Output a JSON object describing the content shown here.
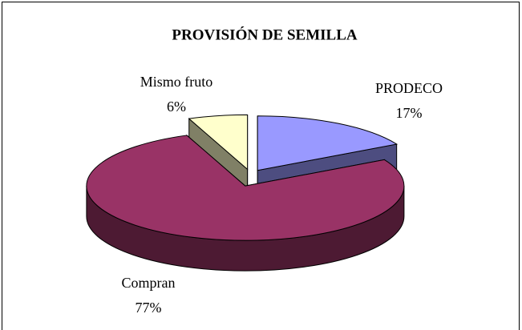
{
  "chart_data": {
    "type": "pie3d",
    "title": "PROVISIÓN DE SEMILLA",
    "categories": [
      "PRODECO",
      "Compran",
      "Mismo fruto"
    ],
    "values": [
      17,
      77,
      6
    ],
    "value_labels": [
      "17%",
      "77%",
      "6%"
    ],
    "colors": [
      "#9999ff",
      "#993366",
      "#ffffcc"
    ]
  }
}
